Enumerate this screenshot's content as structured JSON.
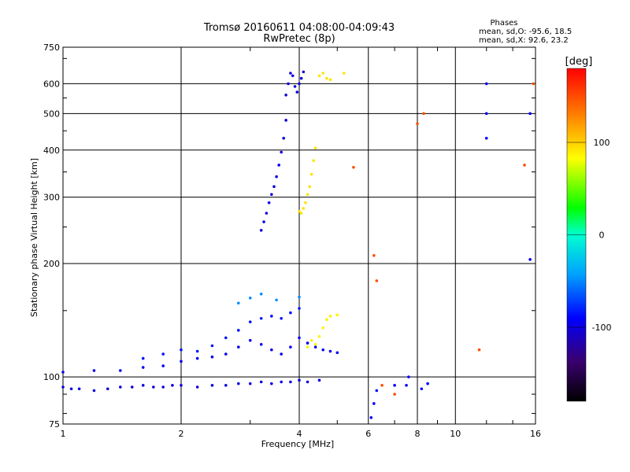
{
  "chart_data": {
    "type": "scatter",
    "title": "Tromsø 20160611 04:08:00-04:09:43",
    "subtitle": "RwPretec (8p)",
    "xlabel": "Frequency [MHz]",
    "ylabel": "Stationary phase Virtual Height [km]",
    "x_scale": "log",
    "y_scale": "log",
    "xlim": [
      1,
      16
    ],
    "ylim": [
      75,
      750
    ],
    "x_ticks": [
      1,
      2,
      4,
      6,
      8,
      10,
      16
    ],
    "x_tick_labels": [
      "1",
      "2",
      "4",
      "6",
      "8",
      "10",
      "16"
    ],
    "y_ticks": [
      75,
      100,
      200,
      300,
      400,
      500,
      600,
      750
    ],
    "y_tick_labels": [
      "75",
      "100",
      "200",
      "300",
      "400",
      "500",
      "600",
      "750"
    ],
    "grid": true,
    "phases_box": {
      "title": "Phases",
      "line_o": "mean, sd,O: -95.6, 18.5",
      "line_x": "mean, sd,X: 92.6, 23.2"
    },
    "colorbar": {
      "label": "[deg]",
      "range": [
        -180,
        180
      ],
      "ticks": [
        100,
        0,
        -100
      ],
      "tick_labels": [
        "100",
        "0",
        "-100"
      ]
    },
    "series": [
      {
        "x": [
          1.0,
          1.05,
          1.1,
          1.2,
          1.3,
          1.4,
          1.5,
          1.6,
          1.7,
          1.8,
          1.9,
          2.0,
          2.2,
          2.4,
          2.6,
          2.8,
          3.0,
          3.2,
          3.4,
          3.6,
          3.8,
          4.0,
          4.2,
          4.5
        ],
        "y": [
          94,
          93,
          93,
          92,
          93,
          94,
          94,
          95,
          94,
          94,
          95,
          95,
          94,
          95,
          95,
          96,
          96,
          97,
          96,
          97,
          97,
          98,
          97,
          98
        ],
        "phase": -100
      },
      {
        "x": [
          1.0,
          1.2,
          1.4,
          1.6,
          1.8,
          2.0,
          2.2,
          2.4,
          2.6,
          2.8,
          3.0,
          3.2,
          3.4,
          3.6,
          3.8,
          4.0,
          4.2,
          4.4,
          4.6,
          4.8,
          5.0
        ],
        "y": [
          103,
          104,
          104,
          106,
          107,
          110,
          112,
          113,
          115,
          120,
          125,
          122,
          118,
          115,
          120,
          127,
          123,
          120,
          118,
          117,
          116
        ],
        "phase": -95
      },
      {
        "x": [
          1.6,
          1.8,
          2.0,
          2.2,
          2.4,
          2.6,
          2.8,
          3.0,
          3.2,
          3.4,
          3.6,
          3.8,
          4.0
        ],
        "y": [
          112,
          115,
          118,
          117,
          121,
          127,
          133,
          140,
          143,
          145,
          143,
          148,
          152
        ],
        "phase": -85
      },
      {
        "x": [
          2.8,
          3.0,
          3.2,
          3.5,
          4.0
        ],
        "y": [
          157,
          162,
          166,
          160,
          163
        ],
        "phase": -50
      },
      {
        "x": [
          3.2,
          3.25,
          3.3,
          3.35,
          3.4,
          3.45,
          3.5,
          3.55,
          3.6,
          3.65,
          3.7
        ],
        "y": [
          245,
          258,
          272,
          290,
          305,
          320,
          340,
          365,
          395,
          430,
          480
        ],
        "phase": -100
      },
      {
        "x": [
          3.7,
          3.75,
          3.8,
          3.85,
          3.9,
          3.95,
          4.0,
          4.05,
          4.1
        ],
        "y": [
          560,
          600,
          640,
          630,
          590,
          570,
          600,
          620,
          645
        ],
        "phase": -100
      },
      {
        "x": [
          4.0,
          4.05,
          4.1,
          4.15,
          4.2,
          4.25,
          4.3,
          4.35,
          4.4
        ],
        "y": [
          275,
          272,
          280,
          290,
          305,
          320,
          345,
          375,
          405
        ],
        "phase": 95
      },
      {
        "x": [
          4.2,
          4.3,
          4.4,
          4.5,
          4.6,
          4.7,
          4.8,
          5.0
        ],
        "y": [
          120,
          125,
          122,
          128,
          135,
          142,
          145,
          146
        ],
        "phase": 90
      },
      {
        "x": [
          4.5,
          4.6,
          4.7,
          4.8,
          5.2
        ],
        "y": [
          630,
          640,
          620,
          615,
          640
        ],
        "phase": 95
      },
      {
        "x": [
          6.1,
          6.2,
          6.3,
          7.0,
          7.5,
          7.6,
          8.2,
          8.5,
          12.0,
          12.0,
          12.0,
          15.5,
          15.5
        ],
        "y": [
          78,
          85,
          92,
          95,
          95,
          100,
          93,
          96,
          600,
          500,
          430,
          500,
          205
        ],
        "phase": -90
      },
      {
        "x": [
          5.5,
          6.2,
          6.3,
          6.5,
          7.0,
          8.0,
          8.3,
          11.5,
          15.0,
          15.8
        ],
        "y": [
          360,
          210,
          180,
          95,
          90,
          470,
          500,
          118,
          365,
          600
        ],
        "phase": 150
      }
    ]
  }
}
